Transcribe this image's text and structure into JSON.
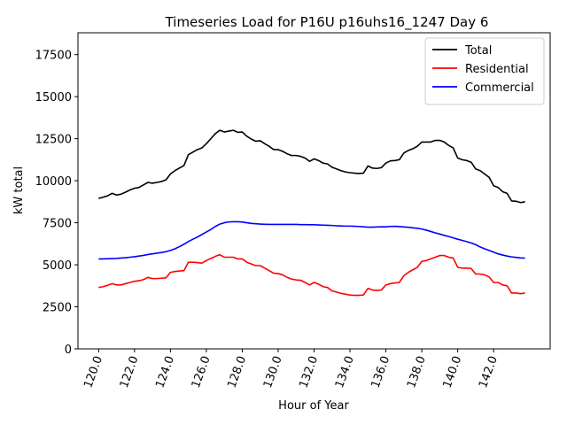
{
  "chart_data": {
    "type": "line",
    "title": "Timeseries Load for P16U p16uhs16_1247  Day 6",
    "xlabel": "Hour of Year",
    "ylabel": "kW total",
    "xlim": [
      118.85,
      145.15
    ],
    "ylim": [
      0,
      18800
    ],
    "xticks": [
      120,
      122,
      124,
      126,
      128,
      130,
      132,
      134,
      136,
      138,
      140,
      142
    ],
    "xtick_labels": [
      "120.0",
      "122.0",
      "124.0",
      "126.0",
      "128.0",
      "130.0",
      "132.0",
      "134.0",
      "136.0",
      "138.0",
      "140.0",
      "142.0"
    ],
    "yticks": [
      0,
      2500,
      5000,
      7500,
      10000,
      12500,
      15000,
      17500
    ],
    "ytick_labels": [
      "0",
      "2500",
      "5000",
      "7500",
      "10000",
      "12500",
      "15000",
      "17500"
    ],
    "legend_position": "top-right",
    "x": [
      120.0,
      120.25,
      120.5,
      120.75,
      121.0,
      121.25,
      121.5,
      121.75,
      122.0,
      122.25,
      122.5,
      122.75,
      123.0,
      123.25,
      123.5,
      123.75,
      124.0,
      124.25,
      124.5,
      124.75,
      125.0,
      125.25,
      125.5,
      125.75,
      126.0,
      126.25,
      126.5,
      126.75,
      127.0,
      127.25,
      127.5,
      127.75,
      128.0,
      128.25,
      128.5,
      128.75,
      129.0,
      129.25,
      129.5,
      129.75,
      130.0,
      130.25,
      130.5,
      130.75,
      131.0,
      131.25,
      131.5,
      131.75,
      132.0,
      132.25,
      132.5,
      132.75,
      133.0,
      133.25,
      133.5,
      133.75,
      134.0,
      134.25,
      134.5,
      134.75,
      135.0,
      135.25,
      135.5,
      135.75,
      136.0,
      136.25,
      136.5,
      136.75,
      137.0,
      137.25,
      137.5,
      137.75,
      138.0,
      138.25,
      138.5,
      138.75,
      139.0,
      139.25,
      139.5,
      139.75,
      140.0,
      140.25,
      140.5,
      140.75,
      141.0,
      141.25,
      141.5,
      141.75,
      142.0,
      142.25,
      142.5,
      142.75,
      143.0,
      143.25,
      143.5,
      143.75
    ],
    "series": [
      {
        "name": "Total",
        "color": "#000000",
        "values": [
          8950,
          9020,
          9100,
          9250,
          9150,
          9200,
          9320,
          9450,
          9550,
          9600,
          9750,
          9900,
          9850,
          9900,
          9950,
          10050,
          10400,
          10600,
          10750,
          10900,
          11550,
          11700,
          11850,
          11950,
          12200,
          12500,
          12800,
          13000,
          12900,
          12950,
          13000,
          12880,
          12900,
          12650,
          12480,
          12350,
          12380,
          12200,
          12050,
          11850,
          11850,
          11750,
          11600,
          11500,
          11500,
          11450,
          11350,
          11150,
          11300,
          11200,
          11050,
          11000,
          10800,
          10700,
          10600,
          10520,
          10480,
          10450,
          10430,
          10450,
          10880,
          10750,
          10730,
          10780,
          11050,
          11180,
          11200,
          11250,
          11650,
          11800,
          11900,
          12050,
          12300,
          12300,
          12300,
          12400,
          12400,
          12300,
          12100,
          11950,
          11350,
          11250,
          11200,
          11100,
          10700,
          10600,
          10400,
          10200,
          9700,
          9600,
          9350,
          9250,
          8800,
          8780,
          8700,
          8750
        ]
      },
      {
        "name": "Residential",
        "color": "#ff0000",
        "values": [
          3650,
          3700,
          3780,
          3880,
          3800,
          3800,
          3880,
          3950,
          4020,
          4050,
          4120,
          4250,
          4180,
          4180,
          4200,
          4220,
          4550,
          4600,
          4630,
          4650,
          5150,
          5150,
          5130,
          5100,
          5250,
          5380,
          5500,
          5600,
          5450,
          5450,
          5450,
          5350,
          5350,
          5150,
          5050,
          4950,
          4950,
          4800,
          4650,
          4500,
          4480,
          4400,
          4250,
          4150,
          4100,
          4080,
          3950,
          3800,
          3950,
          3850,
          3700,
          3650,
          3450,
          3380,
          3300,
          3250,
          3200,
          3180,
          3180,
          3200,
          3600,
          3500,
          3480,
          3500,
          3800,
          3880,
          3920,
          3950,
          4350,
          4550,
          4700,
          4850,
          5200,
          5250,
          5350,
          5450,
          5550,
          5550,
          5450,
          5400,
          4850,
          4800,
          4800,
          4780,
          4450,
          4450,
          4400,
          4280,
          3950,
          3950,
          3800,
          3750,
          3320,
          3320,
          3280,
          3320
        ]
      },
      {
        "name": "Commercial",
        "color": "#0000ff",
        "values": [
          5350,
          5350,
          5360,
          5370,
          5380,
          5400,
          5420,
          5450,
          5480,
          5520,
          5560,
          5610,
          5650,
          5690,
          5730,
          5780,
          5850,
          5950,
          6080,
          6220,
          6380,
          6520,
          6650,
          6800,
          6950,
          7100,
          7280,
          7420,
          7500,
          7550,
          7560,
          7560,
          7540,
          7500,
          7460,
          7440,
          7420,
          7410,
          7400,
          7400,
          7400,
          7400,
          7400,
          7400,
          7400,
          7390,
          7390,
          7380,
          7380,
          7370,
          7360,
          7350,
          7340,
          7320,
          7310,
          7300,
          7300,
          7290,
          7280,
          7260,
          7240,
          7240,
          7250,
          7260,
          7260,
          7280,
          7290,
          7270,
          7250,
          7230,
          7200,
          7170,
          7130,
          7060,
          6980,
          6900,
          6830,
          6750,
          6680,
          6600,
          6520,
          6450,
          6380,
          6300,
          6200,
          6060,
          5950,
          5850,
          5750,
          5650,
          5580,
          5520,
          5470,
          5440,
          5410,
          5400
        ]
      }
    ]
  }
}
